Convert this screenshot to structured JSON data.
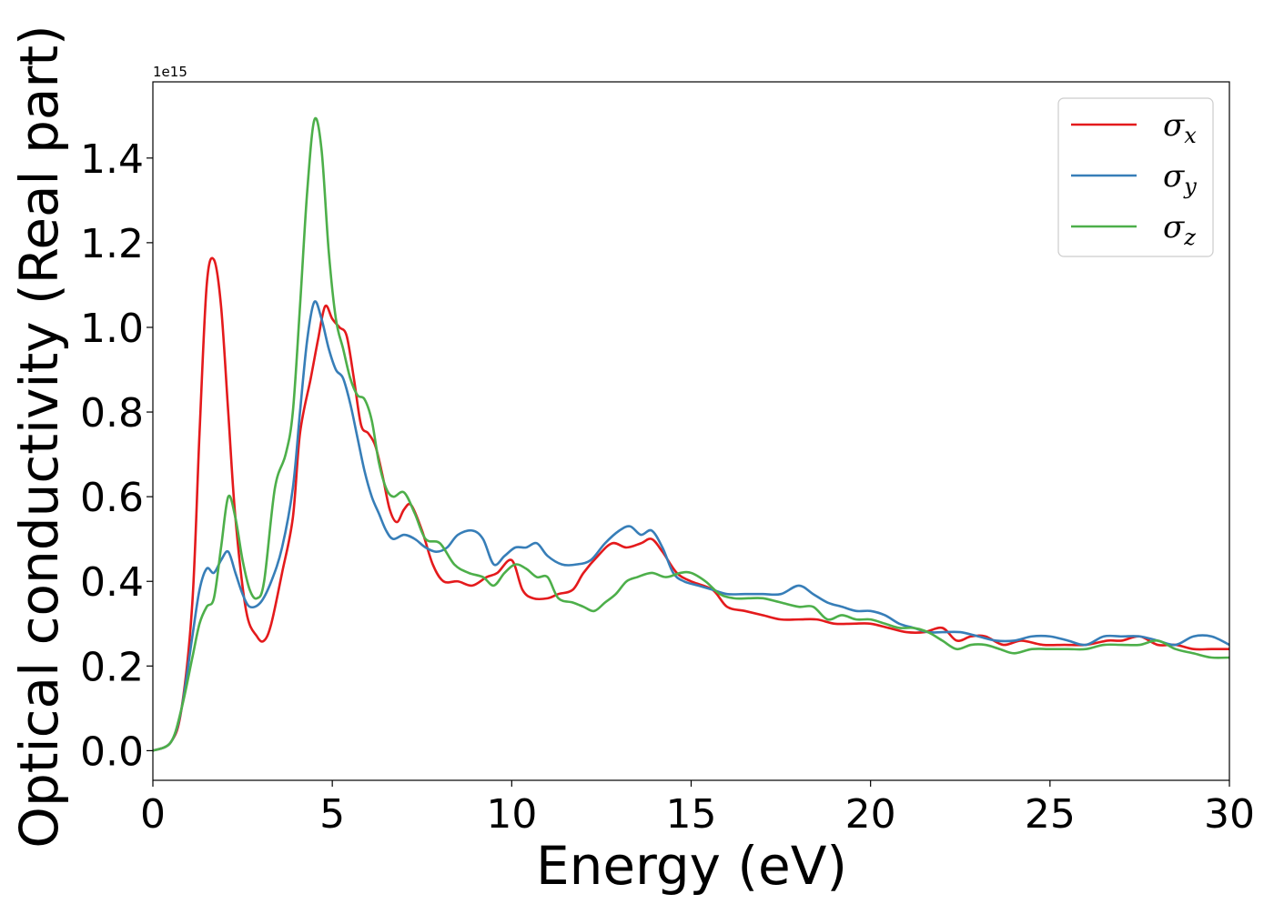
{
  "chart_data": {
    "type": "line",
    "xlabel": "Energy (eV)",
    "ylabel": "Optical conductivity (Real part)",
    "y_offset_label": "1e15",
    "xlim": [
      0,
      30
    ],
    "ylim": [
      -0.07,
      1.58
    ],
    "x_ticks": [
      0,
      5,
      10,
      15,
      20,
      25,
      30
    ],
    "x_tick_labels": [
      "0",
      "5",
      "10",
      "15",
      "20",
      "25",
      "30"
    ],
    "y_ticks": [
      0.0,
      0.2,
      0.4,
      0.6,
      0.8,
      1.0,
      1.2,
      1.4
    ],
    "y_tick_labels": [
      "0.0",
      "0.2",
      "0.4",
      "0.6",
      "0.8",
      "1.0",
      "1.2",
      "1.4"
    ],
    "grid": false,
    "legend_position": "top-right",
    "series": [
      {
        "name": "σx",
        "symbol": "σ",
        "subscript": "x",
        "color": "#e41a1c",
        "points": [
          [
            0,
            0
          ],
          [
            0.5,
            0.02
          ],
          [
            0.8,
            0.1
          ],
          [
            1.1,
            0.35
          ],
          [
            1.3,
            0.75
          ],
          [
            1.5,
            1.1
          ],
          [
            1.7,
            1.16
          ],
          [
            1.9,
            1.05
          ],
          [
            2.1,
            0.8
          ],
          [
            2.3,
            0.55
          ],
          [
            2.6,
            0.33
          ],
          [
            2.9,
            0.27
          ],
          [
            3.1,
            0.26
          ],
          [
            3.3,
            0.3
          ],
          [
            3.6,
            0.42
          ],
          [
            3.9,
            0.55
          ],
          [
            4.1,
            0.75
          ],
          [
            4.4,
            0.88
          ],
          [
            4.6,
            0.97
          ],
          [
            4.8,
            1.05
          ],
          [
            5.0,
            1.02
          ],
          [
            5.2,
            1.0
          ],
          [
            5.4,
            0.98
          ],
          [
            5.6,
            0.88
          ],
          [
            5.8,
            0.77
          ],
          [
            6.0,
            0.75
          ],
          [
            6.2,
            0.72
          ],
          [
            6.4,
            0.65
          ],
          [
            6.6,
            0.57
          ],
          [
            6.8,
            0.54
          ],
          [
            7.0,
            0.57
          ],
          [
            7.2,
            0.58
          ],
          [
            7.5,
            0.52
          ],
          [
            7.8,
            0.44
          ],
          [
            8.1,
            0.4
          ],
          [
            8.5,
            0.4
          ],
          [
            8.9,
            0.39
          ],
          [
            9.3,
            0.41
          ],
          [
            9.6,
            0.42
          ],
          [
            10.0,
            0.45
          ],
          [
            10.3,
            0.38
          ],
          [
            10.6,
            0.36
          ],
          [
            11.0,
            0.36
          ],
          [
            11.3,
            0.37
          ],
          [
            11.7,
            0.38
          ],
          [
            12.0,
            0.42
          ],
          [
            12.4,
            0.46
          ],
          [
            12.8,
            0.49
          ],
          [
            13.2,
            0.48
          ],
          [
            13.6,
            0.49
          ],
          [
            13.9,
            0.5
          ],
          [
            14.2,
            0.47
          ],
          [
            14.6,
            0.42
          ],
          [
            15.0,
            0.4
          ],
          [
            15.6,
            0.38
          ],
          [
            16.0,
            0.34
          ],
          [
            16.5,
            0.33
          ],
          [
            17.0,
            0.32
          ],
          [
            17.5,
            0.31
          ],
          [
            18.0,
            0.31
          ],
          [
            18.5,
            0.31
          ],
          [
            19.0,
            0.3
          ],
          [
            19.5,
            0.3
          ],
          [
            20.0,
            0.3
          ],
          [
            20.5,
            0.29
          ],
          [
            21.0,
            0.28
          ],
          [
            21.5,
            0.28
          ],
          [
            22.0,
            0.29
          ],
          [
            22.4,
            0.26
          ],
          [
            22.8,
            0.27
          ],
          [
            23.2,
            0.27
          ],
          [
            23.7,
            0.25
          ],
          [
            24.2,
            0.26
          ],
          [
            24.8,
            0.25
          ],
          [
            25.4,
            0.25
          ],
          [
            26.0,
            0.25
          ],
          [
            26.6,
            0.26
          ],
          [
            27.0,
            0.26
          ],
          [
            27.5,
            0.27
          ],
          [
            28.0,
            0.25
          ],
          [
            28.5,
            0.25
          ],
          [
            29.0,
            0.24
          ],
          [
            29.5,
            0.24
          ],
          [
            30.0,
            0.24
          ]
        ]
      },
      {
        "name": "σy",
        "symbol": "σ",
        "subscript": "y",
        "color": "#377eb8",
        "points": [
          [
            0,
            0
          ],
          [
            0.5,
            0.02
          ],
          [
            0.8,
            0.1
          ],
          [
            1.1,
            0.27
          ],
          [
            1.3,
            0.38
          ],
          [
            1.5,
            0.43
          ],
          [
            1.7,
            0.42
          ],
          [
            1.9,
            0.45
          ],
          [
            2.1,
            0.47
          ],
          [
            2.3,
            0.42
          ],
          [
            2.5,
            0.37
          ],
          [
            2.7,
            0.34
          ],
          [
            3.0,
            0.35
          ],
          [
            3.3,
            0.4
          ],
          [
            3.6,
            0.48
          ],
          [
            3.9,
            0.62
          ],
          [
            4.1,
            0.8
          ],
          [
            4.3,
            0.97
          ],
          [
            4.5,
            1.06
          ],
          [
            4.7,
            1.02
          ],
          [
            4.9,
            0.95
          ],
          [
            5.1,
            0.9
          ],
          [
            5.3,
            0.88
          ],
          [
            5.5,
            0.82
          ],
          [
            5.7,
            0.74
          ],
          [
            5.9,
            0.66
          ],
          [
            6.1,
            0.6
          ],
          [
            6.3,
            0.56
          ],
          [
            6.5,
            0.52
          ],
          [
            6.7,
            0.5
          ],
          [
            7.0,
            0.51
          ],
          [
            7.3,
            0.5
          ],
          [
            7.6,
            0.48
          ],
          [
            7.9,
            0.47
          ],
          [
            8.2,
            0.48
          ],
          [
            8.5,
            0.51
          ],
          [
            8.9,
            0.52
          ],
          [
            9.2,
            0.5
          ],
          [
            9.5,
            0.44
          ],
          [
            9.8,
            0.46
          ],
          [
            10.1,
            0.48
          ],
          [
            10.4,
            0.48
          ],
          [
            10.7,
            0.49
          ],
          [
            11.0,
            0.46
          ],
          [
            11.4,
            0.44
          ],
          [
            11.8,
            0.44
          ],
          [
            12.2,
            0.45
          ],
          [
            12.6,
            0.49
          ],
          [
            13.0,
            0.52
          ],
          [
            13.3,
            0.53
          ],
          [
            13.6,
            0.51
          ],
          [
            13.9,
            0.52
          ],
          [
            14.2,
            0.48
          ],
          [
            14.5,
            0.42
          ],
          [
            14.8,
            0.4
          ],
          [
            15.2,
            0.39
          ],
          [
            15.6,
            0.38
          ],
          [
            16.0,
            0.37
          ],
          [
            16.5,
            0.37
          ],
          [
            17.0,
            0.37
          ],
          [
            17.5,
            0.37
          ],
          [
            18.0,
            0.39
          ],
          [
            18.4,
            0.37
          ],
          [
            18.8,
            0.35
          ],
          [
            19.2,
            0.34
          ],
          [
            19.6,
            0.33
          ],
          [
            20.0,
            0.33
          ],
          [
            20.4,
            0.32
          ],
          [
            20.8,
            0.3
          ],
          [
            21.2,
            0.29
          ],
          [
            21.6,
            0.28
          ],
          [
            22.0,
            0.28
          ],
          [
            22.5,
            0.28
          ],
          [
            23.0,
            0.27
          ],
          [
            23.5,
            0.26
          ],
          [
            24.0,
            0.26
          ],
          [
            24.5,
            0.27
          ],
          [
            25.0,
            0.27
          ],
          [
            25.5,
            0.26
          ],
          [
            26.0,
            0.25
          ],
          [
            26.5,
            0.27
          ],
          [
            27.0,
            0.27
          ],
          [
            27.5,
            0.27
          ],
          [
            28.0,
            0.26
          ],
          [
            28.5,
            0.25
          ],
          [
            29.0,
            0.27
          ],
          [
            29.5,
            0.27
          ],
          [
            30.0,
            0.25
          ]
        ]
      },
      {
        "name": "σz",
        "symbol": "σ",
        "subscript": "z",
        "color": "#4daf4a",
        "points": [
          [
            0,
            0
          ],
          [
            0.5,
            0.02
          ],
          [
            0.8,
            0.1
          ],
          [
            1.1,
            0.22
          ],
          [
            1.3,
            0.3
          ],
          [
            1.5,
            0.34
          ],
          [
            1.7,
            0.36
          ],
          [
            1.9,
            0.48
          ],
          [
            2.1,
            0.6
          ],
          [
            2.3,
            0.55
          ],
          [
            2.5,
            0.45
          ],
          [
            2.7,
            0.38
          ],
          [
            2.9,
            0.36
          ],
          [
            3.1,
            0.4
          ],
          [
            3.4,
            0.62
          ],
          [
            3.7,
            0.7
          ],
          [
            3.9,
            0.8
          ],
          [
            4.1,
            1.05
          ],
          [
            4.3,
            1.32
          ],
          [
            4.5,
            1.49
          ],
          [
            4.7,
            1.42
          ],
          [
            4.9,
            1.18
          ],
          [
            5.1,
            1.02
          ],
          [
            5.3,
            0.95
          ],
          [
            5.5,
            0.88
          ],
          [
            5.7,
            0.84
          ],
          [
            5.9,
            0.83
          ],
          [
            6.1,
            0.78
          ],
          [
            6.3,
            0.68
          ],
          [
            6.5,
            0.62
          ],
          [
            6.7,
            0.6
          ],
          [
            7.0,
            0.61
          ],
          [
            7.3,
            0.56
          ],
          [
            7.6,
            0.5
          ],
          [
            8.0,
            0.49
          ],
          [
            8.4,
            0.44
          ],
          [
            8.8,
            0.42
          ],
          [
            9.2,
            0.41
          ],
          [
            9.5,
            0.39
          ],
          [
            9.8,
            0.42
          ],
          [
            10.1,
            0.44
          ],
          [
            10.4,
            0.43
          ],
          [
            10.7,
            0.41
          ],
          [
            11.0,
            0.41
          ],
          [
            11.3,
            0.36
          ],
          [
            11.7,
            0.35
          ],
          [
            12.0,
            0.34
          ],
          [
            12.3,
            0.33
          ],
          [
            12.6,
            0.35
          ],
          [
            12.9,
            0.37
          ],
          [
            13.2,
            0.4
          ],
          [
            13.5,
            0.41
          ],
          [
            13.9,
            0.42
          ],
          [
            14.3,
            0.41
          ],
          [
            14.7,
            0.42
          ],
          [
            15.0,
            0.42
          ],
          [
            15.4,
            0.4
          ],
          [
            15.8,
            0.37
          ],
          [
            16.2,
            0.36
          ],
          [
            16.6,
            0.36
          ],
          [
            17.0,
            0.36
          ],
          [
            17.5,
            0.35
          ],
          [
            18.0,
            0.34
          ],
          [
            18.4,
            0.34
          ],
          [
            18.8,
            0.31
          ],
          [
            19.2,
            0.32
          ],
          [
            19.6,
            0.31
          ],
          [
            20.0,
            0.31
          ],
          [
            20.4,
            0.3
          ],
          [
            20.8,
            0.29
          ],
          [
            21.2,
            0.29
          ],
          [
            21.6,
            0.28
          ],
          [
            22.0,
            0.26
          ],
          [
            22.4,
            0.24
          ],
          [
            22.8,
            0.25
          ],
          [
            23.2,
            0.25
          ],
          [
            23.6,
            0.24
          ],
          [
            24.0,
            0.23
          ],
          [
            24.5,
            0.24
          ],
          [
            25.0,
            0.24
          ],
          [
            25.5,
            0.24
          ],
          [
            26.0,
            0.24
          ],
          [
            26.5,
            0.25
          ],
          [
            27.0,
            0.25
          ],
          [
            27.5,
            0.25
          ],
          [
            28.0,
            0.26
          ],
          [
            28.5,
            0.24
          ],
          [
            29.0,
            0.23
          ],
          [
            29.5,
            0.22
          ],
          [
            30.0,
            0.22
          ]
        ]
      }
    ]
  }
}
